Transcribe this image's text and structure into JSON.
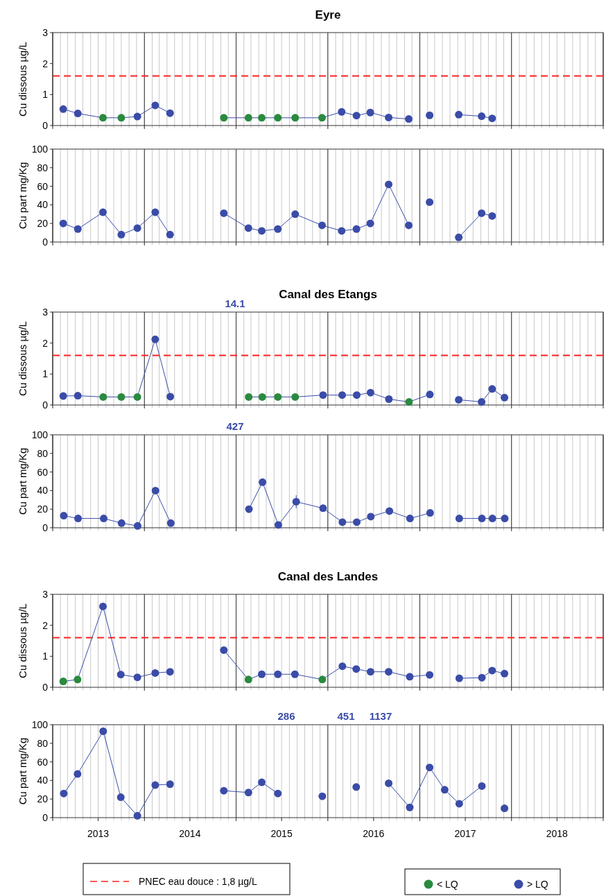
{
  "chart_data": [
    {
      "type": "line",
      "title": "Eyre",
      "ylabel": "Cu dissous µg/L",
      "xlim": [
        "2013-01-01",
        "2019-01-01"
      ],
      "ylim": [
        0,
        3
      ],
      "yticks": [
        0,
        1,
        2,
        3
      ],
      "tick_labels": "y",
      "grid": "x",
      "legend": false,
      "xticks": [
        {
          "value": "2013-01-01",
          "label": null
        },
        {
          "value": "2014-01-01",
          "label": null
        },
        {
          "value": "2015-01-01",
          "label": null
        },
        {
          "value": "2016-01-01",
          "label": null
        },
        {
          "value": "2017-01-01",
          "label": null
        },
        {
          "value": "2018-01-01",
          "label": null
        },
        {
          "value": "2019-01-01",
          "label": null
        }
      ],
      "ref_lines": [
        {
          "axis": "y",
          "value": 1.6,
          "color": "#ff2020",
          "line_style": "dashed"
        }
      ],
      "x": [
        "2013-02-12",
        "2013-04-11",
        "2013-07-20",
        "2013-10-01",
        "2013-12-04",
        "2014-02-13",
        "2014-04-13",
        "2014-08-01",
        "2014-11-13",
        "2015-02-19",
        "2015-04-13",
        "2015-06-16",
        "2015-08-24",
        "2015-12-09",
        "2016-02-25",
        "2016-04-24",
        "2016-06-18",
        "2016-08-30",
        "2016-11-18",
        "2017-01-01",
        "2017-02-09",
        "2017-04-01",
        "2017-06-05",
        "2017-09-04",
        "2017-10-16"
      ],
      "series": [
        {
          "type": "line",
          "marker": "none",
          "color": "#3a4ca8",
          "values": [
            0.53,
            0.39,
            0.25,
            0.25,
            0.29,
            0.65,
            0.4,
            null,
            0.25,
            0.25,
            0.25,
            0.25,
            0.25,
            0.25,
            0.44,
            0.32,
            0.42,
            0.26,
            0.21,
            null,
            null,
            null,
            0.35,
            0.3,
            0.23
          ]
        },
        {
          "type": "scatter",
          "marker": "circle",
          "color": "#2a8a3e",
          "values": [
            null,
            null,
            0.25,
            0.25,
            null,
            null,
            null,
            null,
            0.25,
            0.25,
            0.25,
            0.25,
            0.25,
            0.25,
            null,
            null,
            null,
            null,
            null,
            null,
            null,
            null,
            null,
            null,
            null
          ]
        },
        {
          "type": "scatter",
          "marker": "circle",
          "color": "#3a4ca8",
          "values": [
            0.53,
            0.39,
            null,
            null,
            0.29,
            0.65,
            0.4,
            null,
            null,
            null,
            null,
            null,
            null,
            null,
            0.44,
            0.32,
            0.42,
            0.26,
            0.21,
            null,
            0.33,
            null,
            0.35,
            0.3,
            0.23
          ]
        }
      ]
    },
    {
      "type": "line",
      "ylabel": "Cu part mg/Kg",
      "xlim": [
        "2013-01-01",
        "2019-01-01"
      ],
      "ylim": [
        0,
        100
      ],
      "yticks": [
        0,
        20,
        40,
        60,
        80,
        100
      ],
      "tick_labels": "y",
      "grid": "x",
      "legend": false,
      "xticks": [
        {
          "value": "2013-01-01",
          "label": null
        },
        {
          "value": "2014-01-01",
          "label": null
        },
        {
          "value": "2015-01-01",
          "label": null
        },
        {
          "value": "2016-01-01",
          "label": null
        },
        {
          "value": "2017-01-01",
          "label": null
        },
        {
          "value": "2018-01-01",
          "label": null
        },
        {
          "value": "2019-01-01",
          "label": null
        }
      ],
      "x": [
        "2013-02-12",
        "2013-04-11",
        "2013-07-20",
        "2013-10-01",
        "2013-12-04",
        "2014-02-13",
        "2014-04-13",
        "2014-08-01",
        "2014-11-13",
        "2015-02-19",
        "2015-04-13",
        "2015-06-16",
        "2015-08-24",
        "2015-12-09",
        "2016-02-25",
        "2016-04-24",
        "2016-06-18",
        "2016-08-30",
        "2016-11-18",
        "2017-01-01",
        "2017-02-09",
        "2017-04-01",
        "2017-06-05",
        "2017-09-04",
        "2017-10-16"
      ],
      "series": [
        {
          "type": "line",
          "marker": "none",
          "color": "#3a4ca8",
          "values": [
            20,
            14,
            32,
            8,
            15,
            32,
            8,
            null,
            31,
            15,
            12,
            14,
            30,
            18,
            12,
            14,
            20,
            62,
            18,
            null,
            null,
            null,
            5,
            31,
            28
          ]
        },
        {
          "type": "scatter",
          "marker": "circle",
          "color": "#3a4ca8",
          "values": [
            20,
            14,
            32,
            8,
            15,
            32,
            8,
            null,
            31,
            15,
            12,
            14,
            30,
            18,
            12,
            14,
            20,
            62,
            18,
            null,
            43,
            null,
            5,
            31,
            28
          ]
        }
      ]
    },
    {
      "type": "line",
      "title": "Canal des Etangs",
      "ylabel": "Cu dissous µg/L",
      "xlim": [
        "2013-01-01",
        "2019-01-01"
      ],
      "ylim": [
        0,
        3
      ],
      "yticks": [
        0,
        1,
        2,
        3
      ],
      "tick_labels": "y",
      "grid": "x",
      "legend": false,
      "xticks": [
        {
          "value": "2013-01-01",
          "label": null
        },
        {
          "value": "2014-01-01",
          "label": null
        },
        {
          "value": "2015-01-01",
          "label": null
        },
        {
          "value": "2016-01-01",
          "label": null
        },
        {
          "value": "2017-01-01",
          "label": null
        },
        {
          "value": "2018-01-01",
          "label": null
        },
        {
          "value": "2019-01-01",
          "label": null
        }
      ],
      "ref_lines": [
        {
          "axis": "y",
          "value": 1.6,
          "color": "#ff2020",
          "line_style": "dashed"
        }
      ],
      "annotations": [
        "14.1"
      ],
      "x": [
        "2013-02-12",
        "2013-04-11",
        "2013-07-21",
        "2013-10-01",
        "2013-12-04",
        "2014-02-13",
        "2014-04-14",
        "2015-01-01",
        "2015-02-20",
        "2015-04-15",
        "2015-06-16",
        "2015-08-24",
        "2015-12-13",
        "2016-02-27",
        "2016-04-25",
        "2016-06-19",
        "2016-08-31",
        "2016-11-19",
        "2017-02-10",
        "2017-04-01",
        "2017-06-05",
        "2017-09-04",
        "2017-10-16",
        "2017-12-04"
      ],
      "series": [
        {
          "type": "line",
          "marker": "none",
          "color": "#3a4ca8",
          "values": [
            0.29,
            0.3,
            0.26,
            0.26,
            0.26,
            2.12,
            0.27,
            null,
            0.26,
            0.26,
            0.26,
            0.26,
            0.32,
            0.32,
            0.32,
            0.4,
            0.19,
            0.1,
            0.34,
            null,
            0.17,
            0.1,
            0.52,
            0.24
          ]
        },
        {
          "type": "scatter",
          "marker": "circle",
          "color": "#2a8a3e",
          "values": [
            null,
            null,
            0.26,
            0.26,
            0.26,
            null,
            null,
            null,
            0.26,
            0.26,
            0.26,
            0.26,
            null,
            null,
            null,
            null,
            null,
            0.1,
            null,
            null,
            null,
            null,
            null,
            null
          ]
        },
        {
          "type": "scatter",
          "marker": "circle",
          "color": "#3a4ca8",
          "values": [
            0.29,
            0.3,
            null,
            null,
            null,
            2.12,
            0.27,
            null,
            null,
            null,
            null,
            null,
            0.32,
            0.32,
            0.32,
            0.4,
            0.19,
            null,
            0.34,
            null,
            0.17,
            0.1,
            0.52,
            0.24
          ]
        }
      ]
    },
    {
      "type": "line",
      "ylabel": "Cu part mg/Kg",
      "xlim": [
        "2013-01-01",
        "2019-01-01"
      ],
      "ylim": [
        0,
        100
      ],
      "yticks": [
        0,
        20,
        40,
        60,
        80,
        100
      ],
      "tick_labels": "y",
      "grid": "x",
      "legend": false,
      "xticks": [
        {
          "value": "2013-01-01",
          "label": null
        },
        {
          "value": "2014-01-01",
          "label": null
        },
        {
          "value": "2015-01-01",
          "label": null
        },
        {
          "value": "2016-01-01",
          "label": null
        },
        {
          "value": "2017-01-01",
          "label": null
        },
        {
          "value": "2018-01-01",
          "label": null
        },
        {
          "value": "2019-01-01",
          "label": null
        }
      ],
      "annotations": [
        "427"
      ],
      "x": [
        "2013-02-14",
        "2013-04-12",
        "2013-07-23",
        "2013-10-02",
        "2013-12-05",
        "2014-02-14",
        "2014-04-16",
        "2015-01-01",
        "2015-02-21",
        "2015-04-16",
        "2015-06-18",
        "2015-08-28",
        "2015-12-13",
        "2016-02-28",
        "2016-04-25",
        "2016-06-20",
        "2016-09-02",
        "2016-11-23",
        "2017-02-11",
        "2017-04-01",
        "2017-06-07",
        "2017-09-05",
        "2017-10-17",
        "2017-12-05"
      ],
      "series": [
        {
          "type": "line",
          "marker": "none",
          "color": "#3a4ca8",
          "values": [
            13,
            10,
            10,
            5,
            2,
            40,
            5,
            null,
            20,
            49,
            3,
            28,
            21,
            6,
            6,
            12,
            18,
            10,
            16,
            null,
            10,
            10,
            10,
            10
          ]
        },
        {
          "type": "scatter",
          "marker": "circle",
          "color": "#3a4ca8",
          "values": [
            13,
            10,
            10,
            5,
            2,
            40,
            5,
            null,
            20,
            49,
            3,
            28,
            21,
            6,
            6,
            12,
            18,
            10,
            16,
            null,
            10,
            10,
            10,
            10
          ],
          "errors": [
            null,
            null,
            null,
            null,
            null,
            null,
            null,
            null,
            null,
            null,
            null,
            7,
            null,
            null,
            null,
            null,
            null,
            null,
            null,
            null,
            null,
            null,
            null,
            null
          ]
        }
      ]
    },
    {
      "type": "line",
      "title": "Canal des Landes",
      "ylabel": "Cu dissous µg/L",
      "xlim": [
        "2013-01-01",
        "2019-01-01"
      ],
      "ylim": [
        0,
        3
      ],
      "yticks": [
        0,
        1,
        2,
        3
      ],
      "tick_labels": "y",
      "grid": "x",
      "legend": "bottom",
      "xticks": [
        {
          "value": "2013-01-01",
          "label": null
        },
        {
          "value": "2014-01-01",
          "label": null
        },
        {
          "value": "2015-01-01",
          "label": null
        },
        {
          "value": "2016-01-01",
          "label": null
        },
        {
          "value": "2017-01-01",
          "label": null
        },
        {
          "value": "2018-01-01",
          "label": null
        },
        {
          "value": "2019-01-01",
          "label": null
        }
      ],
      "ref_lines": [
        {
          "axis": "y",
          "value": 1.6,
          "color": "#ff2020",
          "line_style": "dashed"
        }
      ],
      "annotations": [
        "PNEC eau douce : 1,8 µg/L"
      ],
      "x": [
        "2013-02-12",
        "2013-04-10",
        "2013-07-20",
        "2013-09-29",
        "2013-12-04",
        "2014-02-13",
        "2014-04-13",
        "2014-08-01",
        "2014-11-13",
        "2015-02-19",
        "2015-04-13",
        "2015-06-16",
        "2015-08-23",
        "2015-12-10",
        "2016-02-28",
        "2016-04-23",
        "2016-06-19",
        "2016-08-30",
        "2016-11-22",
        "2017-02-09",
        "2017-04-01",
        "2017-06-07",
        "2017-09-05",
        "2017-10-16",
        "2017-12-04"
      ],
      "series": [
        {
          "type": "line",
          "marker": "none",
          "color": "#3a4ca8",
          "values": [
            0.19,
            0.25,
            2.61,
            0.41,
            0.32,
            0.46,
            0.5,
            null,
            1.2,
            0.25,
            0.42,
            0.42,
            0.42,
            0.25,
            0.68,
            0.59,
            0.5,
            0.5,
            0.34,
            0.4,
            null,
            0.29,
            0.31,
            0.54,
            0.44
          ]
        },
        {
          "type": "scatter",
          "name": "< LQ",
          "marker": "circle",
          "color": "#2a8a3e",
          "values": [
            0.19,
            0.25,
            null,
            null,
            null,
            null,
            null,
            null,
            null,
            0.25,
            null,
            null,
            null,
            0.25,
            null,
            null,
            null,
            null,
            null,
            null,
            null,
            null,
            null,
            null,
            null
          ]
        },
        {
          "type": "scatter",
          "name": "> LQ",
          "marker": "circle",
          "color": "#3a4ca8",
          "values": [
            null,
            null,
            2.61,
            0.41,
            0.32,
            0.46,
            0.5,
            null,
            1.2,
            null,
            0.42,
            0.42,
            0.42,
            null,
            0.68,
            0.59,
            0.5,
            0.5,
            0.34,
            0.4,
            null,
            0.29,
            0.31,
            0.54,
            0.44
          ]
        }
      ]
    },
    {
      "type": "line",
      "ylabel": "Cu part mg/Kg",
      "xlim": [
        "2013-01-01",
        "2019-01-01"
      ],
      "ylim": [
        0,
        100
      ],
      "yticks": [
        0,
        20,
        40,
        60,
        80,
        100
      ],
      "grid": "x",
      "legend": false,
      "xticks": [
        {
          "value": "2013-01-01",
          "label": null
        },
        {
          "value": "2013-07-01",
          "label": "2013"
        },
        {
          "value": "2014-01-01",
          "label": null
        },
        {
          "value": "2014-07-01",
          "label": "2014"
        },
        {
          "value": "2015-01-01",
          "label": null
        },
        {
          "value": "2015-07-01",
          "label": "2015"
        },
        {
          "value": "2016-01-01",
          "label": null
        },
        {
          "value": "2016-07-01",
          "label": "2016"
        },
        {
          "value": "2017-01-01",
          "label": null
        },
        {
          "value": "2017-07-01",
          "label": "2017"
        },
        {
          "value": "2018-01-01",
          "label": null
        },
        {
          "value": "2018-07-01",
          "label": "2018"
        },
        {
          "value": "2019-01-01",
          "label": null
        }
      ],
      "annotations": [
        "286",
        "451",
        "1137"
      ],
      "x": [
        "2013-02-14",
        "2013-04-10",
        "2013-07-21",
        "2013-09-29",
        "2013-12-04",
        "2014-02-13",
        "2014-04-13",
        "2014-08-01",
        "2014-11-13",
        "2015-02-19",
        "2015-04-13",
        "2015-06-16",
        "2015-08-21",
        "2015-12-10",
        "2016-02-20",
        "2016-04-23",
        "2016-06-19",
        "2016-08-30",
        "2016-11-22",
        "2017-02-09",
        "2017-04-10",
        "2017-06-07",
        "2017-09-05",
        "2017-10-20",
        "2017-12-04"
      ],
      "series": [
        {
          "type": "line",
          "marker": "none",
          "color": "#3a4ca8",
          "values": [
            26,
            47,
            93,
            22,
            2,
            35,
            36,
            null,
            29,
            27,
            38,
            26,
            null,
            null,
            null,
            null,
            null,
            37,
            11,
            54,
            30,
            15,
            34,
            null,
            null
          ]
        },
        {
          "type": "scatter",
          "marker": "circle",
          "color": "#3a4ca8",
          "values": [
            26,
            47,
            93,
            22,
            2,
            35,
            36,
            null,
            29,
            27,
            38,
            26,
            null,
            23,
            null,
            33,
            null,
            37,
            11,
            54,
            30,
            15,
            34,
            null,
            10
          ]
        }
      ]
    }
  ]
}
